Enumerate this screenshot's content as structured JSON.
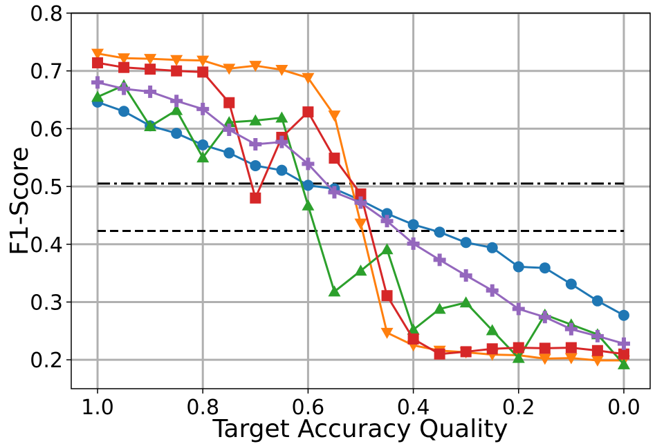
{
  "chart_data": {
    "type": "line",
    "xlabel": "Target Accuracy Quality",
    "ylabel": "F1-Score",
    "x": [
      1.0,
      0.95,
      0.9,
      0.85,
      0.8,
      0.75,
      0.7,
      0.65,
      0.6,
      0.55,
      0.5,
      0.45,
      0.4,
      0.35,
      0.3,
      0.25,
      0.2,
      0.15,
      0.1,
      0.05,
      0.0
    ],
    "series": [
      {
        "color": "#1f77b4",
        "marker": "circle",
        "values": [
          0.646,
          0.63,
          0.605,
          0.592,
          0.572,
          0.558,
          0.536,
          0.528,
          0.502,
          0.496,
          0.476,
          0.453,
          0.434,
          0.421,
          0.403,
          0.394,
          0.361,
          0.359,
          0.331,
          0.302,
          0.277
        ]
      },
      {
        "color": "#ff7f0e",
        "marker": "triangle-down",
        "values": [
          0.73,
          0.722,
          0.721,
          0.719,
          0.718,
          0.704,
          0.709,
          0.702,
          0.688,
          0.623,
          0.436,
          0.247,
          0.225,
          0.216,
          0.213,
          0.209,
          0.208,
          0.202,
          0.203,
          0.199,
          0.199
        ]
      },
      {
        "color": "#2ca02c",
        "marker": "triangle-up",
        "values": [
          0.655,
          0.675,
          0.604,
          0.632,
          0.55,
          0.611,
          0.614,
          0.619,
          0.467,
          0.318,
          0.354,
          0.391,
          0.252,
          0.288,
          0.299,
          0.251,
          0.203,
          0.278,
          0.261,
          0.244,
          0.192
        ]
      },
      {
        "color": "#d62728",
        "marker": "square",
        "values": [
          0.714,
          0.706,
          0.703,
          0.7,
          0.698,
          0.645,
          0.48,
          0.585,
          0.629,
          0.549,
          0.487,
          0.311,
          0.236,
          0.21,
          0.214,
          0.219,
          0.221,
          0.22,
          0.221,
          0.216,
          0.21
        ]
      },
      {
        "color": "#9467bd",
        "marker": "plus",
        "values": [
          0.68,
          0.669,
          0.664,
          0.648,
          0.634,
          0.598,
          0.573,
          0.577,
          0.539,
          0.49,
          0.472,
          0.44,
          0.401,
          0.373,
          0.346,
          0.32,
          0.288,
          0.274,
          0.253,
          0.241,
          0.228
        ]
      }
    ],
    "hlines": [
      {
        "value": 0.505,
        "style": "dashdot",
        "color": "#000000"
      },
      {
        "value": 0.423,
        "style": "dashed",
        "color": "#000000"
      }
    ],
    "xlim": [
      1.05,
      -0.05
    ],
    "xticks": [
      {
        "value": 1.0,
        "label": "1.0"
      },
      0.8,
      0.6,
      0.4,
      0.2,
      {
        "value": 0.0,
        "label": "0.0"
      }
    ],
    "ylim": [
      0.15,
      0.8
    ],
    "yticks": [
      0.2,
      0.3,
      0.4,
      0.5,
      0.6,
      0.7,
      0.8
    ],
    "grid": true
  }
}
